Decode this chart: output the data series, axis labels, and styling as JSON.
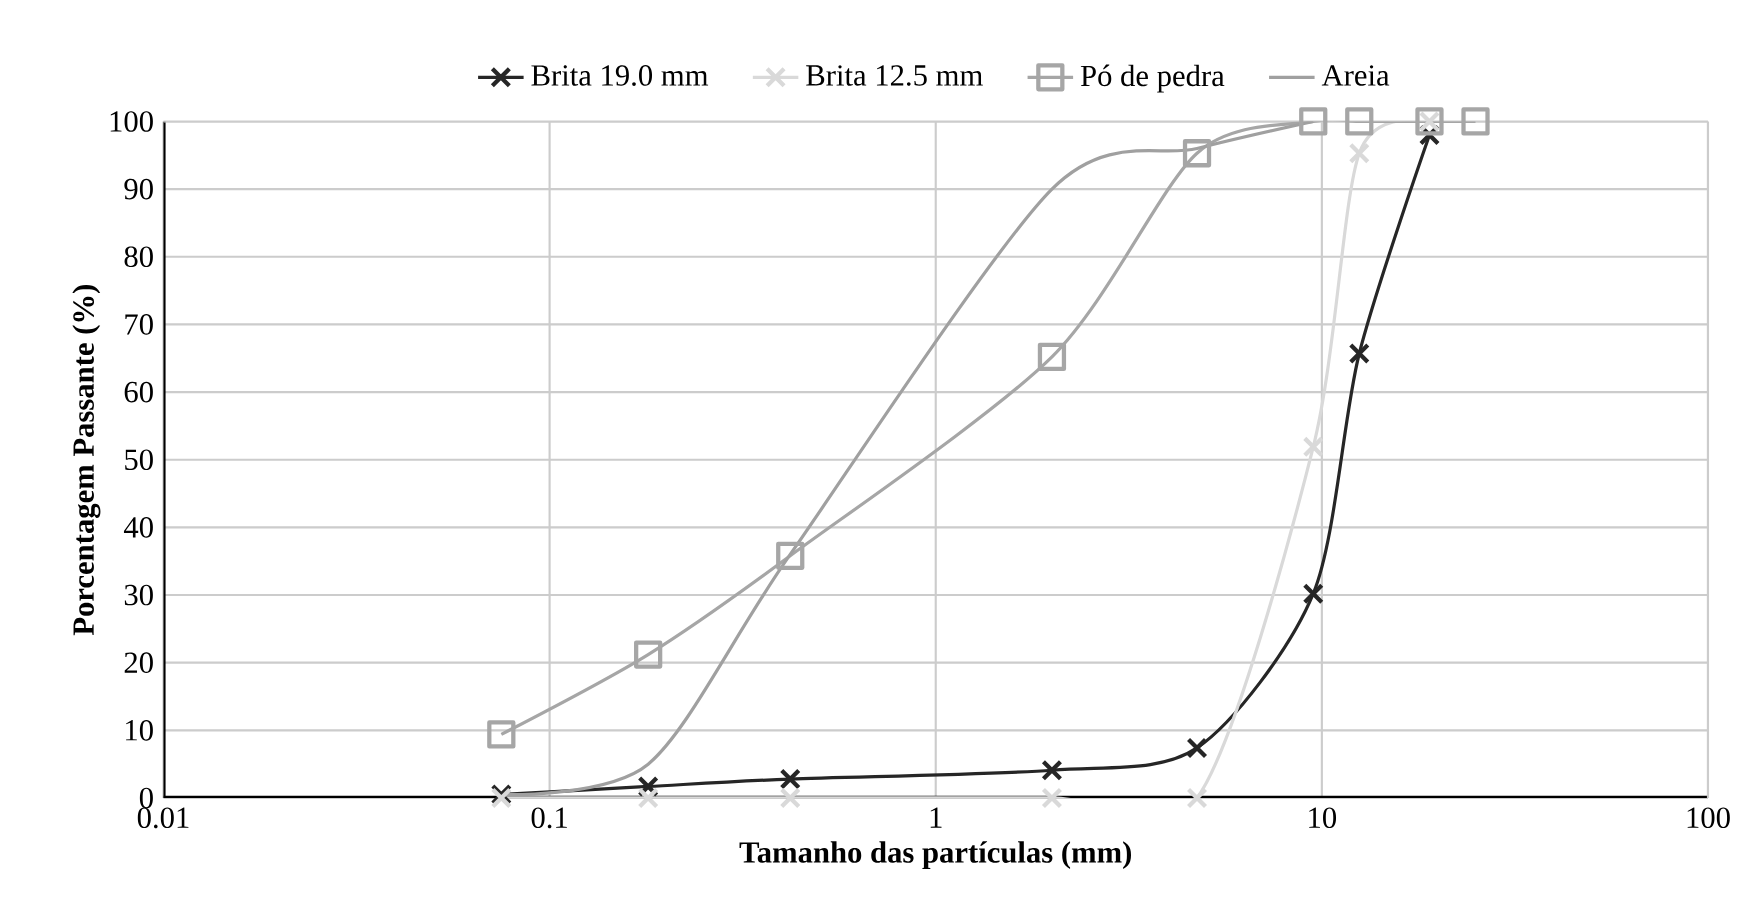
{
  "chart_data": {
    "type": "line",
    "xlabel": "Tamanho das partículas (mm)",
    "ylabel": "Porcentagem Passante (%)",
    "log": "x",
    "grid": true,
    "legend": "top",
    "xlim": [
      0.01,
      100
    ],
    "xticks": [
      0.01,
      0.1,
      1,
      10,
      100
    ],
    "ylim": [
      0,
      100
    ],
    "yticks": [
      0,
      10,
      20,
      30,
      40,
      50,
      60,
      70,
      80,
      90,
      100
    ],
    "series": [
      {
        "name": "Brita 19.0 mm",
        "color": "#262626",
        "marker": "cross",
        "x": [
          0.075,
          0.18,
          0.42,
          2.0,
          4.75,
          9.5,
          12.5,
          19
        ],
        "values": [
          0.5,
          1.7,
          2.8,
          4.1,
          7.4,
          30.2,
          65.7,
          98
        ]
      },
      {
        "name": "Brita 12.5 mm",
        "color": "#d9d9d9",
        "marker": "cross",
        "x": [
          0.075,
          0.18,
          0.42,
          2.0,
          4.75,
          9.5,
          12.5,
          19
        ],
        "values": [
          0,
          0,
          0,
          0,
          0,
          51.9,
          95.3,
          100
        ]
      },
      {
        "name": "Pó de pedra",
        "color": "#a6a6a6",
        "marker": "square",
        "x": [
          0.075,
          0.18,
          0.42,
          2.0,
          4.75,
          9.5,
          12.5,
          19,
          25
        ],
        "values": [
          9.4,
          21.2,
          35.8,
          65.2,
          95.3,
          100,
          100,
          100,
          100
        ]
      },
      {
        "name": "Areia",
        "color": "#a0a0a0",
        "marker": "none",
        "x": [
          0.075,
          0.18,
          0.42,
          2.0,
          4.75,
          9.5
        ],
        "values": [
          0.5,
          5,
          36,
          90,
          96,
          100
        ]
      }
    ]
  }
}
